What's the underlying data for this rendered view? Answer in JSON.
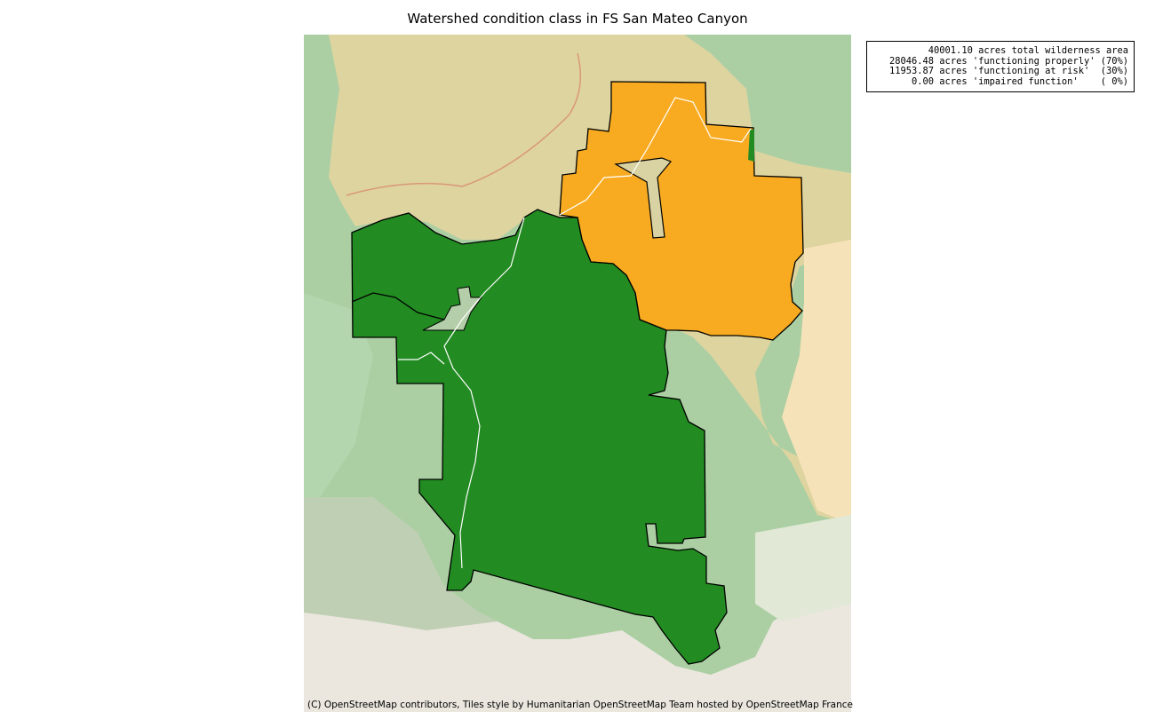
{
  "title": "Watershed condition class in FS San Mateo Canyon",
  "legend": {
    "lines": [
      "40001.10 acres total wilderness area",
      "28046.48 acres 'functioning properly' (70%)",
      "11953.87 acres 'functioning at risk'  (30%)",
      "0.00 acres 'impaired function'    ( 0%)"
    ]
  },
  "attribution": "(C) OpenStreetMap contributors, Tiles style by Humanitarian OpenStreetMap Team hosted by OpenStreetMap France",
  "colors": {
    "functioning_properly": "#228b22",
    "functioning_at_risk": "#f8ab21",
    "basemap_green": "#abcfa3",
    "basemap_tan": "#ded4a0",
    "basemap_beige": "#ebe7df"
  }
}
